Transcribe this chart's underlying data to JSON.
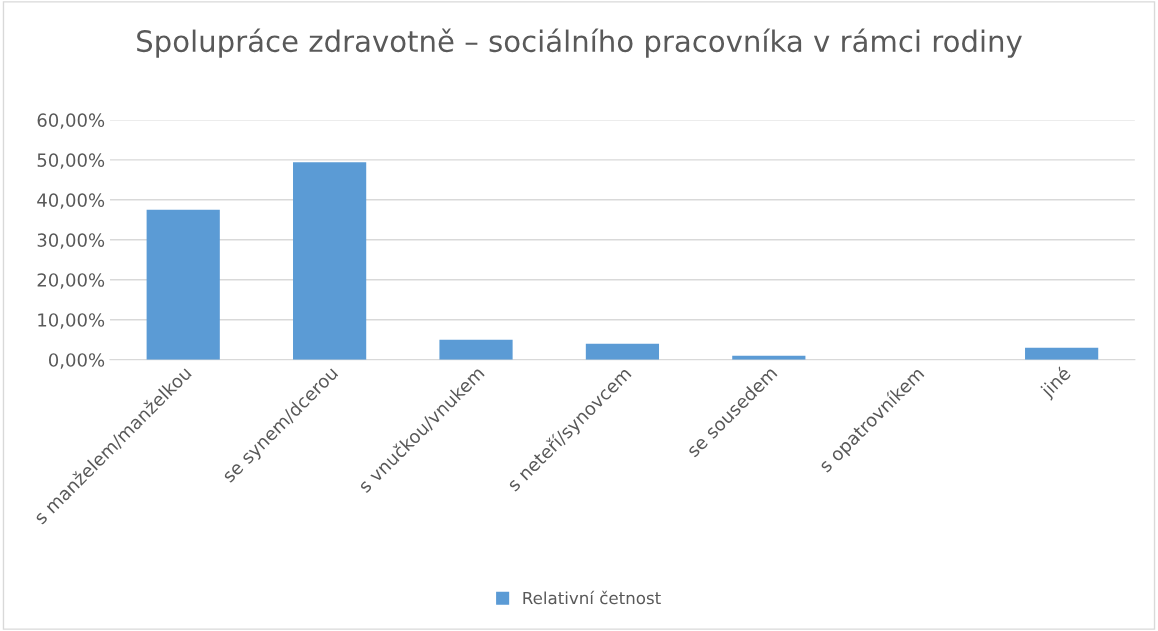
{
  "chart_data": {
    "type": "bar",
    "title": "Spolupráce zdravotně – sociálního pracovníka v rámci rodiny",
    "categories": [
      "s manželem/manželkou",
      "se synem/dcerou",
      "s vnučkou/vnukem",
      "s neteří/synovcem",
      "se sousedem",
      "s opatrovníkem",
      "jiné"
    ],
    "series": [
      {
        "name": "Relativní četnost",
        "color": "#5b9bd5",
        "values": [
          37.5,
          49.4,
          5,
          4,
          1,
          0,
          3
        ]
      }
    ],
    "ylim": [
      0,
      60
    ],
    "yticks": [
      {
        "value": 0,
        "label": "0,00%"
      },
      {
        "value": 10,
        "label": "10,00%"
      },
      {
        "value": 20,
        "label": "20,00%"
      },
      {
        "value": 30,
        "label": "30,00%"
      },
      {
        "value": 40,
        "label": "40,00%"
      },
      {
        "value": 50,
        "label": "50,00%"
      },
      {
        "value": 60,
        "label": "60,00%"
      }
    ],
    "grid": "y",
    "legend": "bottom"
  }
}
